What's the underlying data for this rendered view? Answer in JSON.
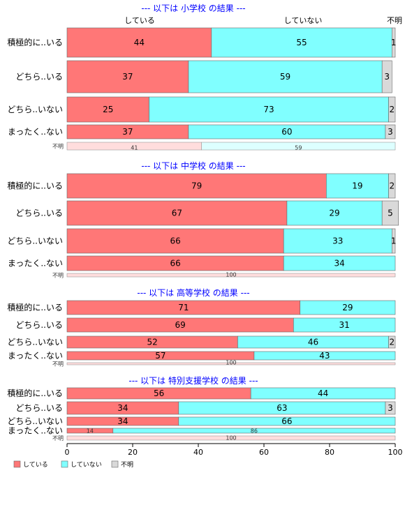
{
  "chart_data": {
    "type": "bar",
    "stacked": true,
    "horizontal": true,
    "xlim": [
      0,
      100
    ],
    "xticks": [
      "0",
      "20",
      "40",
      "60",
      "80",
      "100"
    ],
    "colors": {
      "している": "#ff7777",
      "していない": "#80ffff",
      "不明": "#d9d9d9"
    },
    "legend": {
      "position": "bottom-left",
      "entries": [
        "している",
        "していない",
        "不明"
      ]
    },
    "column_headers": [
      "している",
      "していない",
      "不明"
    ],
    "panels": [
      {
        "title": "--- 以下は 小学校 の結果 ---",
        "rows": [
          {
            "label": "積極的に..いる",
            "values": [
              44,
              55,
              1
            ]
          },
          {
            "label": "どちら..いる",
            "values": [
              37,
              59,
              3
            ]
          },
          {
            "label": "どちら..いない",
            "values": [
              25,
              73,
              2
            ]
          },
          {
            "label": "まったく..ない",
            "values": [
              37,
              60,
              3
            ]
          },
          {
            "label": "不明",
            "values": [
              41,
              59,
              0
            ],
            "small": true
          }
        ]
      },
      {
        "title": "--- 以下は 中学校 の結果 ---",
        "rows": [
          {
            "label": "積極的に..いる",
            "values": [
              79,
              19,
              2
            ]
          },
          {
            "label": "どちら..いる",
            "values": [
              67,
              29,
              5
            ]
          },
          {
            "label": "どちら..いない",
            "values": [
              66,
              33,
              1
            ]
          },
          {
            "label": "まったく..ない",
            "values": [
              66,
              34,
              0
            ]
          },
          {
            "label": "不明",
            "values": [
              100,
              0,
              0
            ],
            "small": true
          }
        ]
      },
      {
        "title": "--- 以下は 高等学校 の結果 ---",
        "rows": [
          {
            "label": "積極的に..いる",
            "values": [
              71,
              29,
              0
            ]
          },
          {
            "label": "どちら..いる",
            "values": [
              69,
              31,
              0
            ]
          },
          {
            "label": "どちら..いない",
            "values": [
              52,
              46,
              2
            ]
          },
          {
            "label": "まったく..ない",
            "values": [
              57,
              43,
              0
            ]
          },
          {
            "label": "不明",
            "values": [
              100,
              0,
              0
            ],
            "small": true
          }
        ]
      },
      {
        "title": "--- 以下は 特別支援学校 の結果 ---",
        "rows": [
          {
            "label": "積極的に..いる",
            "values": [
              56,
              44,
              0
            ]
          },
          {
            "label": "どちら..いる",
            "values": [
              34,
              63,
              3
            ]
          },
          {
            "label": "どちら..いない",
            "values": [
              34,
              66,
              0
            ]
          },
          {
            "label": "まったく..ない",
            "values": [
              14,
              86,
              0
            ],
            "small_values": true
          },
          {
            "label": "不明",
            "values": [
              100,
              0,
              0
            ],
            "small": true
          }
        ]
      }
    ]
  }
}
